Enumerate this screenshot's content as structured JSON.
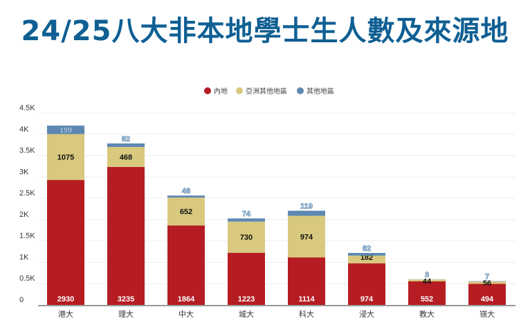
{
  "chart_data": {
    "type": "bar",
    "stacked": true,
    "title": "24/25八大非本地學士生人數及來源地",
    "xlabel": "",
    "ylabel": "",
    "ylim": [
      0,
      4500
    ],
    "yticks": [
      "0",
      "0.5K",
      "1K",
      "1.5K",
      "2K",
      "2.5K",
      "3K",
      "3.5K",
      "4K",
      "4.5K"
    ],
    "grid": true,
    "legend_position": "top",
    "categories": [
      "港大",
      "理大",
      "中大",
      "城大",
      "科大",
      "浸大",
      "教大",
      "嶺大"
    ],
    "series": [
      {
        "name": "內地",
        "color": "#b51d23",
        "values": [
          2930,
          3235,
          1864,
          1223,
          1114,
          974,
          552,
          494
        ]
      },
      {
        "name": "亞洲其他地區",
        "color": "#d8c97f",
        "values": [
          1075,
          468,
          652,
          730,
          974,
          182,
          44,
          56
        ]
      },
      {
        "name": "其他地區",
        "color": "#5d88b1",
        "values": [
          199,
          82,
          48,
          74,
          119,
          62,
          3,
          7
        ]
      }
    ]
  }
}
